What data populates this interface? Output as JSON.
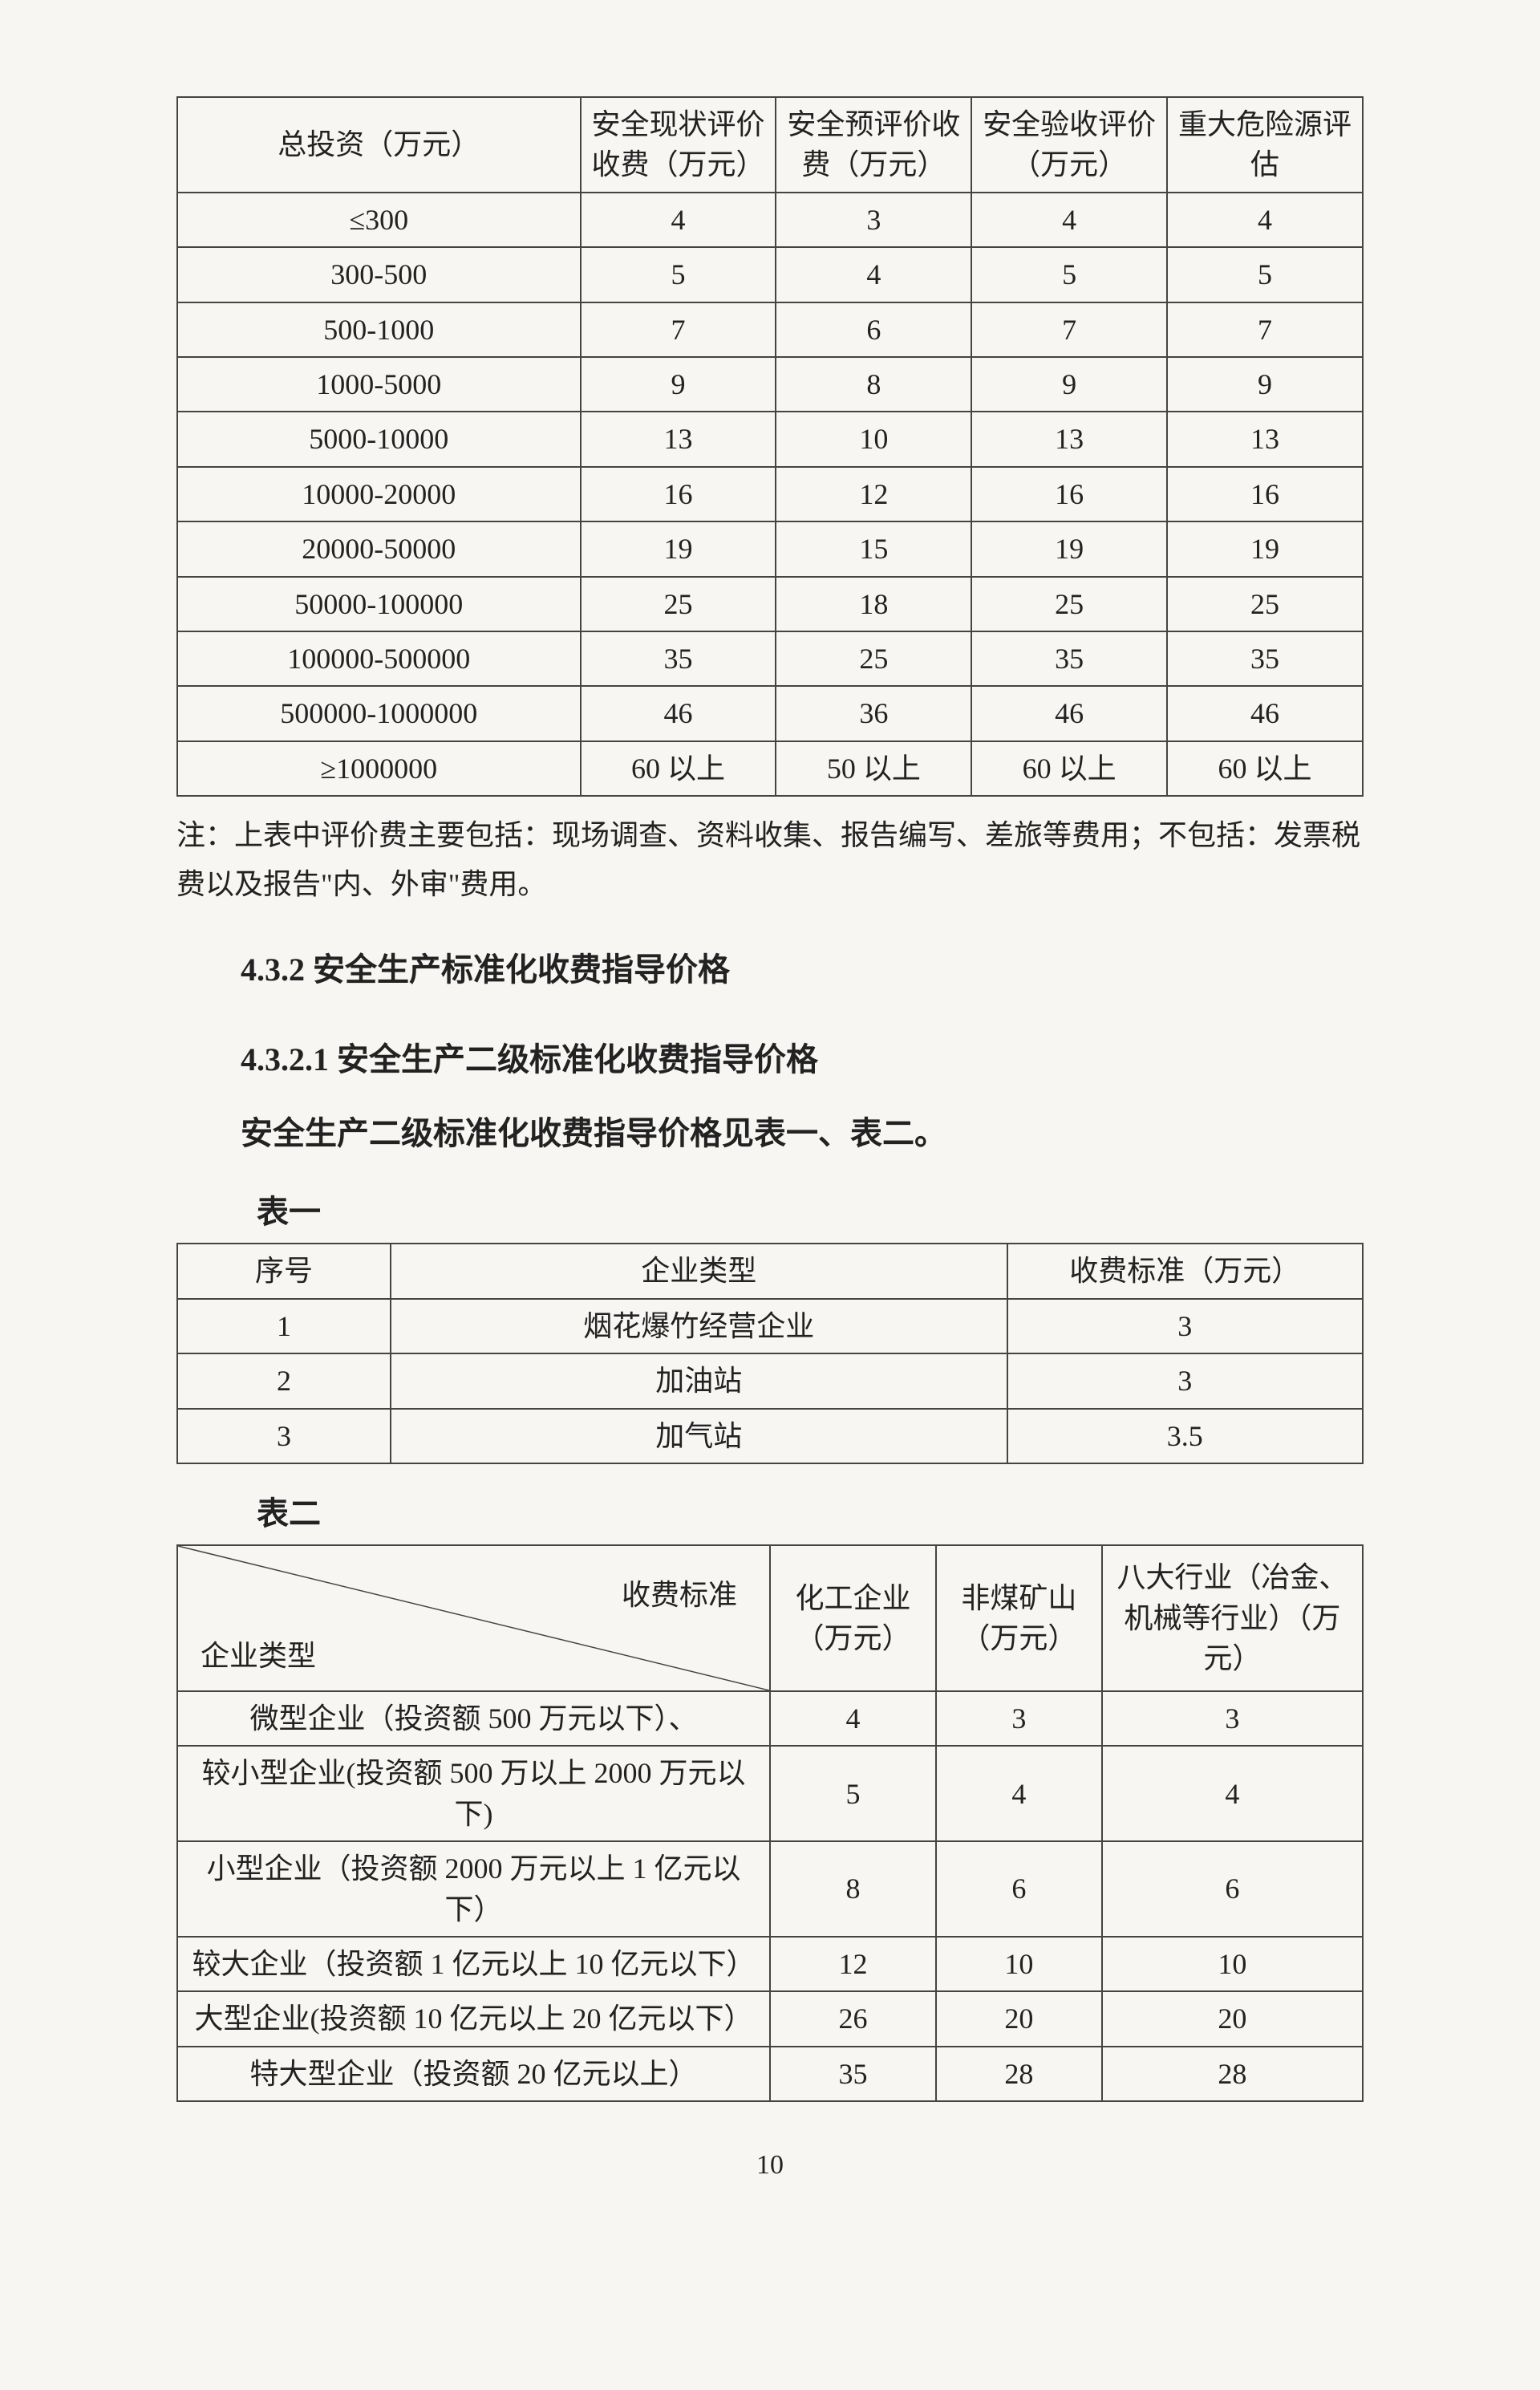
{
  "table_a": {
    "headers": [
      "总投资（万元）",
      "安全现状评价收费（万元）",
      "安全预评价收费（万元）",
      "安全验收评价（万元）",
      "重大危险源评估"
    ],
    "rows": [
      [
        "≤300",
        "4",
        "3",
        "4",
        "4"
      ],
      [
        "300-500",
        "5",
        "4",
        "5",
        "5"
      ],
      [
        "500-1000",
        "7",
        "6",
        "7",
        "7"
      ],
      [
        "1000-5000",
        "9",
        "8",
        "9",
        "9"
      ],
      [
        "5000-10000",
        "13",
        "10",
        "13",
        "13"
      ],
      [
        "10000-20000",
        "16",
        "12",
        "16",
        "16"
      ],
      [
        "20000-50000",
        "19",
        "15",
        "19",
        "19"
      ],
      [
        "50000-100000",
        "25",
        "18",
        "25",
        "25"
      ],
      [
        "100000-500000",
        "35",
        "25",
        "35",
        "35"
      ],
      [
        "500000-1000000",
        "46",
        "36",
        "46",
        "46"
      ],
      [
        "≥1000000",
        "60 以上",
        "50 以上",
        "60 以上",
        "60 以上"
      ]
    ],
    "col_widths": [
      "34%",
      "16.5%",
      "16.5%",
      "16.5%",
      "16.5%"
    ]
  },
  "note_text": "注：上表中评价费主要包括：现场调查、资料收集、报告编写、差旅等费用；不包括：发票税费以及报告\"内、外审\"费用。",
  "heading_432": "4.3.2 安全生产标准化收费指导价格",
  "heading_4321": "4.3.2.1 安全生产二级标准化收费指导价格",
  "body_line": "安全生产二级标准化收费指导价格见表一、表二。",
  "label_t1": "表一",
  "label_t2": "表二",
  "table1": {
    "headers": [
      "序号",
      "企业类型",
      "收费标准（万元）"
    ],
    "rows": [
      [
        "1",
        "烟花爆竹经营企业",
        "3"
      ],
      [
        "2",
        "加油站",
        "3"
      ],
      [
        "3",
        "加气站",
        "3.5"
      ]
    ],
    "col_widths": [
      "18%",
      "52%",
      "30%"
    ]
  },
  "table2": {
    "diag_top": "收费标准",
    "diag_bottom": "企业类型",
    "headers_rest": [
      "化工企业（万元）",
      "非煤矿山（万元）",
      "八大行业（冶金、机械等行业）（万元）"
    ],
    "rows": [
      [
        "微型企业（投资额 500 万元以下）、",
        "4",
        "3",
        "3"
      ],
      [
        "较小型企业(投资额 500 万以上 2000 万元以下)",
        "5",
        "4",
        "4"
      ],
      [
        "小型企业（投资额 2000 万元以上 1 亿元以下）",
        "8",
        "6",
        "6"
      ],
      [
        "较大企业（投资额 1 亿元以上 10 亿元以下）",
        "12",
        "10",
        "10"
      ],
      [
        "大型企业(投资额 10 亿元以上 20 亿元以下）",
        "26",
        "20",
        "20"
      ],
      [
        "特大型企业（投资额 20 亿元以上）",
        "35",
        "28",
        "28"
      ]
    ],
    "col_widths": [
      "50%",
      "14%",
      "14%",
      "22%"
    ]
  },
  "page_number": "10"
}
